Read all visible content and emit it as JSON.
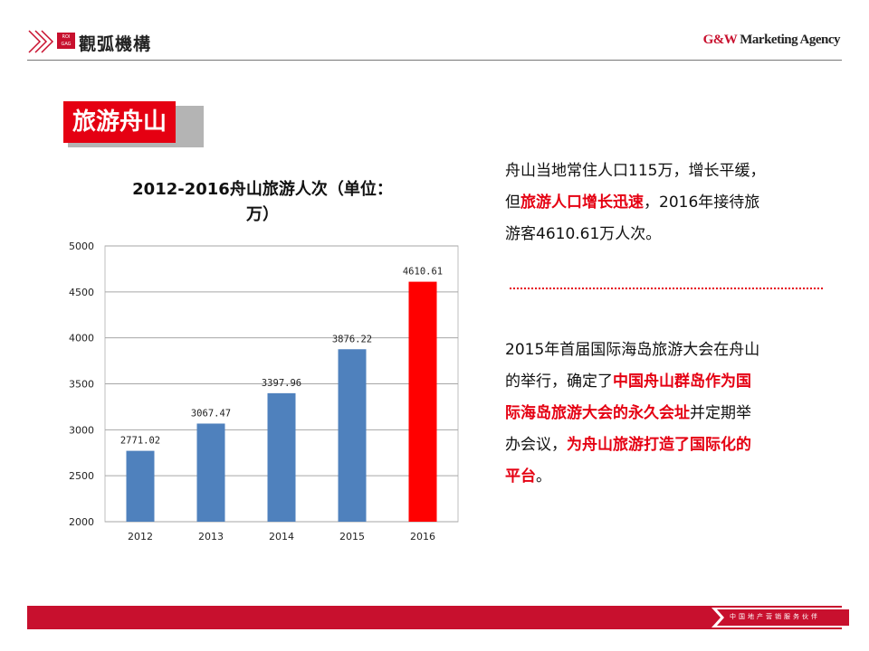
{
  "header": {
    "logo_mark": "ROI GAG",
    "logo_text": "觀弧機構",
    "agency_brand": "G&W",
    "agency_rest": " Marketing Agency"
  },
  "section_tag": "旅游舟山",
  "chart_data": {
    "type": "bar",
    "title_line1": "2012-2016舟山旅游人次（单位：",
    "title_line2": "万）",
    "categories": [
      "2012",
      "2013",
      "2014",
      "2015",
      "2016"
    ],
    "values": [
      2771.02,
      3067.47,
      3397.96,
      3876.22,
      4610.61
    ],
    "value_labels": [
      "2771.02",
      "3067.47",
      "3397.96",
      "3876.22",
      "4610.61"
    ],
    "yticks": [
      "2000",
      "2500",
      "3000",
      "3500",
      "4000",
      "4500",
      "5000"
    ],
    "ylim": [
      2000,
      5000
    ],
    "grid": true,
    "colors": [
      "#4f81bd",
      "#4f81bd",
      "#4f81bd",
      "#4f81bd",
      "#ff0000"
    ]
  },
  "para1": {
    "line1": "舟山当地常住人口115万，增长平缓，",
    "line2_pre": "但",
    "line2_hl": "旅游人口增长迅速",
    "line2_post": "，2016年接待旅",
    "line3": "游客4610.61万人次。"
  },
  "para2": {
    "line1": "2015年首届国际海岛旅游大会在舟山",
    "line2_pre": "的举行，确定了",
    "line2_hl": "中国舟山群岛作为国",
    "line3_hl": "际海岛旅游大会的永久会址",
    "line3_post": "并定期举",
    "line4_pre": "办会议，",
    "line4_hl": "为舟山旅游打造了国际化的",
    "line5_hl": "平台",
    "line5_post": "。"
  },
  "footer": {
    "text": "中国地产营销服务伙伴"
  },
  "colors": {
    "brand_red": "#c8102e",
    "accent_red": "#e50012",
    "bar_blue": "#4f81bd"
  }
}
